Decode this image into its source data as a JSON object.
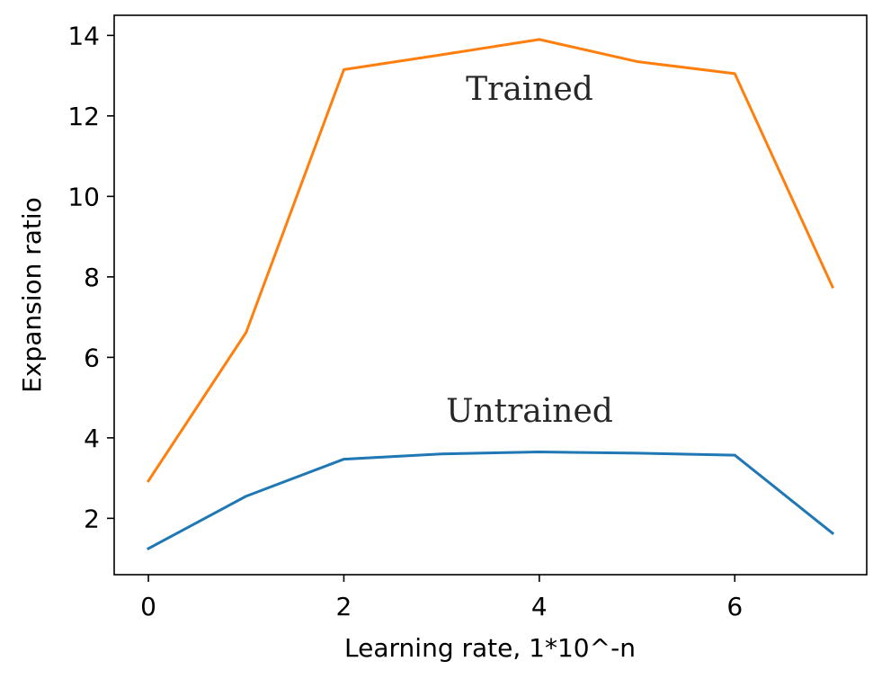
{
  "chart_data": {
    "type": "line",
    "title": "",
    "xlabel": "Learning rate, 1*10^-n",
    "ylabel": "Expansion ratio",
    "xlim": [
      -0.35,
      7.35
    ],
    "ylim": [
      0.6,
      14.5
    ],
    "x_ticks": [
      0,
      2,
      4,
      6
    ],
    "y_ticks": [
      2,
      4,
      6,
      8,
      10,
      12,
      14
    ],
    "grid": false,
    "x": [
      0,
      1,
      2,
      3,
      4,
      5,
      6,
      7
    ],
    "series": [
      {
        "values": [
          1.25,
          2.55,
          3.47,
          3.6,
          3.65,
          3.62,
          3.57,
          1.63
        ],
        "color": "#1f77b4"
      },
      {
        "values": [
          2.93,
          6.62,
          13.15,
          13.52,
          13.9,
          13.35,
          13.05,
          7.75
        ],
        "color": "#ff7f0e"
      }
    ],
    "annotations": [
      {
        "text": "Trained",
        "x": 3.9,
        "y": 12.4
      },
      {
        "text": "Untrained",
        "x": 3.9,
        "y": 4.4
      }
    ]
  }
}
